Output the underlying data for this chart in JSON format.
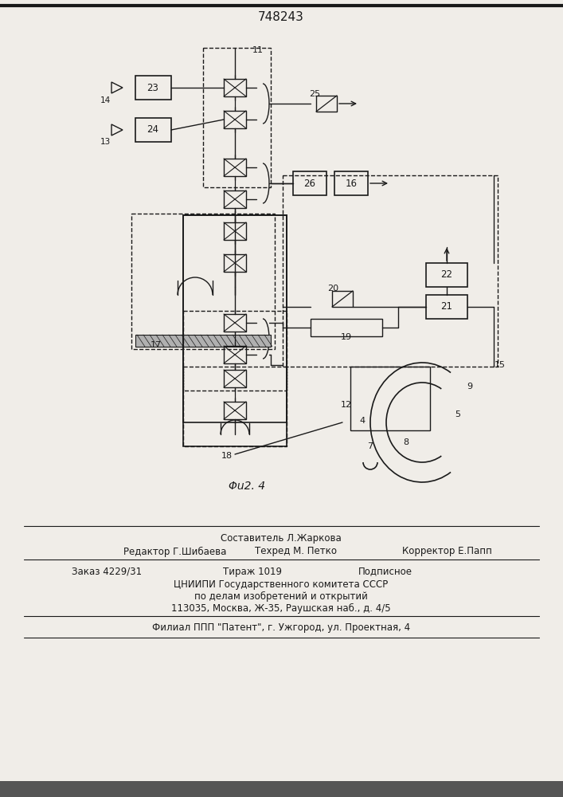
{
  "title": "748243",
  "fig_label": "Φu2. 4",
  "bg": "#f0ede8",
  "lc": "#1a1a1a",
  "footer": [
    "Составитель Л.Жаркова",
    "Редактор Г.Шибаева",
    "Техред М. Петко",
    "Корректор Е.Папп",
    "Заказ 4229/31",
    "Тираж 1019",
    "Подписное",
    "ЦНИИПИ Государственного комитета СССР",
    "по делам изобретений и открытий",
    "113035, Москва, Ж-35, Раушская наб., д. 4/5",
    "Филиал ППП \"Патент\", г. Ужгород, ул. Проектная, 4"
  ]
}
